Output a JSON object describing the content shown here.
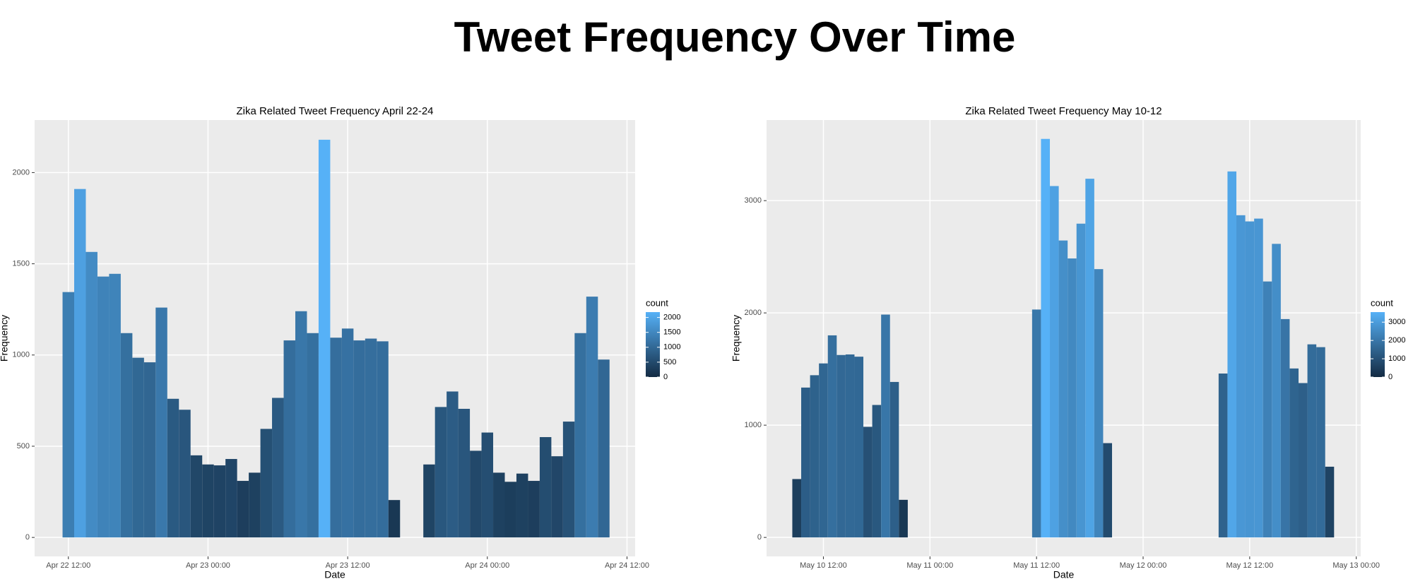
{
  "title": "Tweet Frequency Over Time",
  "chart_data": [
    {
      "type": "histogram",
      "title": "Zika Related Tweet Frequency April 22-24",
      "x_label": "Date",
      "y_label": "Frequency",
      "bins": [
        11.5,
        12.5,
        13.5,
        14.5,
        15.5,
        16.5,
        17.5,
        18.5,
        19.5,
        20.5,
        21.5,
        22.5,
        23.5,
        24.5,
        25.5,
        26.5,
        27.5,
        28.5,
        29.5,
        30.5,
        31.5,
        32.5,
        33.5,
        34.5,
        35.5,
        36.5,
        37.5,
        38.5,
        39.5,
        40.5,
        41.5,
        42.5,
        43.5,
        44.5,
        45.5,
        46.5,
        47.5,
        48.5,
        49.5,
        50.5,
        51.5,
        52.5,
        53.5,
        54.5,
        55.5,
        56.5,
        57.5,
        58.5
      ],
      "values": [
        1345,
        1910,
        1565,
        1430,
        1445,
        1120,
        985,
        960,
        1260,
        760,
        700,
        450,
        400,
        395,
        430,
        310,
        355,
        595,
        765,
        1080,
        1240,
        1120,
        2180,
        1095,
        1145,
        1080,
        1090,
        1075,
        205,
        0,
        0,
        400,
        715,
        800,
        705,
        475,
        575,
        355,
        305,
        350,
        310,
        550,
        445,
        635,
        1120,
        1320,
        975
      ],
      "xlim": [
        9.1,
        60.7
      ],
      "xticks": [
        {
          "value": 12,
          "label": "Apr 22 12:00"
        },
        {
          "value": 24,
          "label": "Apr 23 00:00"
        },
        {
          "value": 36,
          "label": "Apr 23 12:00"
        },
        {
          "value": 48,
          "label": "Apr 24 00:00"
        },
        {
          "value": 60,
          "label": "Apr 24 12:00"
        }
      ],
      "ylim": [
        -104,
        2288
      ],
      "yticks": [
        0,
        500,
        1000,
        1500,
        2000
      ],
      "grid": true,
      "color_scale": {
        "low": "#132B43",
        "high": "#56B1F7"
      },
      "legend_title": "count",
      "legend_ticks": [
        0,
        500,
        1000,
        1500,
        2000
      ]
    },
    {
      "type": "histogram",
      "title": "Zika Related Tweet Frequency May 10-12",
      "x_label": "Date",
      "y_label": "Frequency",
      "bins": [
        8.5,
        9.5,
        10.5,
        11.5,
        12.5,
        13.5,
        14.5,
        15.5,
        16.5,
        17.5,
        18.5,
        19.5,
        20.5,
        21.5,
        22.5,
        23.5,
        24.5,
        25.5,
        26.5,
        27.5,
        28.5,
        29.5,
        30.5,
        31.5,
        32.5,
        33.5,
        34.5,
        35.5,
        36.5,
        37.5,
        38.5,
        39.5,
        40.5,
        41.5,
        42.5,
        43.5,
        44.5,
        45.5,
        46.5,
        47.5,
        48.5,
        49.5,
        50.5,
        51.5,
        52.5,
        53.5,
        54.5,
        55.5,
        56.5,
        57.5,
        58.5,
        59.5,
        60.5,
        61.5,
        62.5,
        63.5,
        64.5,
        65.5,
        66.5,
        67.5,
        68.5,
        69.5
      ],
      "values": [
        520,
        1335,
        1445,
        1550,
        1800,
        1625,
        1630,
        1610,
        985,
        1180,
        1985,
        1385,
        335,
        0,
        0,
        0,
        0,
        0,
        0,
        0,
        0,
        0,
        0,
        0,
        0,
        0,
        0,
        2030,
        3550,
        3130,
        2645,
        2485,
        2795,
        3195,
        2390,
        840,
        0,
        0,
        0,
        0,
        0,
        0,
        0,
        0,
        0,
        0,
        0,
        0,
        1460,
        3260,
        2870,
        2815,
        2840,
        2280,
        2615,
        1945,
        1505,
        1375,
        1720,
        1695,
        630
      ],
      "xlim": [
        5.6,
        72.5
      ],
      "xticks": [
        {
          "value": 12,
          "label": "May 10 12:00"
        },
        {
          "value": 24,
          "label": "May 11 00:00"
        },
        {
          "value": 36,
          "label": "May 11 12:00"
        },
        {
          "value": 48,
          "label": "May 12 00:00"
        },
        {
          "value": 60,
          "label": "May 12 12:00"
        },
        {
          "value": 72,
          "label": "May 13 00:00"
        }
      ],
      "ylim": [
        -169,
        3718
      ],
      "yticks": [
        0,
        1000,
        2000,
        3000
      ],
      "grid": true,
      "color_scale": {
        "low": "#132B43",
        "high": "#56B1F7"
      },
      "legend_title": "count",
      "legend_ticks": [
        0,
        1000,
        2000,
        3000
      ]
    }
  ]
}
